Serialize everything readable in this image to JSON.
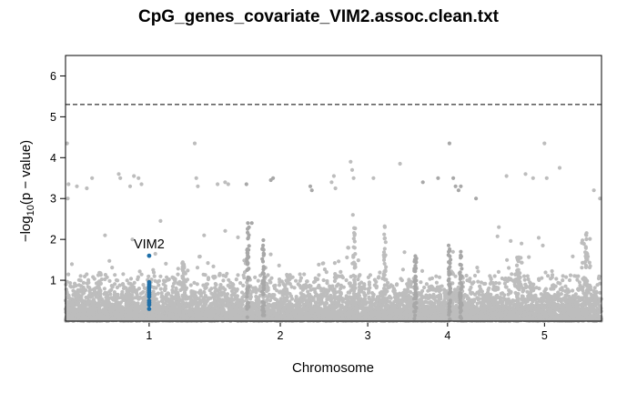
{
  "chart_data": {
    "type": "scatter",
    "title": "CpG_genes_covariate_VIM2.assoc.clean.txt",
    "xlabel": "Chromosome",
    "ylabel_parts": [
      "−log",
      "10",
      "(p − value)"
    ],
    "ylim": [
      0,
      6.5
    ],
    "y_ticks": [
      1,
      2,
      3,
      4,
      5,
      6
    ],
    "chromosomes": [
      {
        "label": "1",
        "length": 220,
        "color": "#bdbdbd"
      },
      {
        "label": "2",
        "length": 125,
        "color": "#a8a8a8"
      },
      {
        "label": "3",
        "length": 105,
        "color": "#bdbdbd"
      },
      {
        "label": "4",
        "length": 105,
        "color": "#a8a8a8"
      },
      {
        "label": "5",
        "length": 150,
        "color": "#bdbdbd"
      }
    ],
    "threshold": 5.3,
    "highlight": {
      "gene": "VIM2",
      "color": "#1f6fa8",
      "chromosome": "1",
      "position": 110,
      "values": [
        1.6,
        0.95,
        0.9,
        0.85,
        0.8,
        0.75,
        0.7,
        0.65,
        0.6,
        0.5,
        0.45,
        0.4,
        0.3
      ]
    },
    "background_points": {
      "count": 7000,
      "description_note": ""
    },
    "notable_points": [
      {
        "chr": "1",
        "pos": 2,
        "y": 4.35
      },
      {
        "chr": "1",
        "pos": 4,
        "y": 3.35
      },
      {
        "chr": "1",
        "pos": 3,
        "y": 3.0
      },
      {
        "chr": "1",
        "pos": 15,
        "y": 3.3
      },
      {
        "chr": "1",
        "pos": 28,
        "y": 3.25
      },
      {
        "chr": "1",
        "pos": 35,
        "y": 3.5
      },
      {
        "chr": "1",
        "pos": 70,
        "y": 3.6
      },
      {
        "chr": "1",
        "pos": 72,
        "y": 3.5
      },
      {
        "chr": "1",
        "pos": 85,
        "y": 3.3
      },
      {
        "chr": "1",
        "pos": 90,
        "y": 3.55
      },
      {
        "chr": "1",
        "pos": 96,
        "y": 3.5
      },
      {
        "chr": "1",
        "pos": 100,
        "y": 3.35
      },
      {
        "chr": "1",
        "pos": 88,
        "y": 2.0
      },
      {
        "chr": "1",
        "pos": 52,
        "y": 2.1
      },
      {
        "chr": "1",
        "pos": 170,
        "y": 4.35
      },
      {
        "chr": "1",
        "pos": 172,
        "y": 3.5
      },
      {
        "chr": "1",
        "pos": 174,
        "y": 3.3
      },
      {
        "chr": "1",
        "pos": 200,
        "y": 3.35
      },
      {
        "chr": "1",
        "pos": 210,
        "y": 3.4
      },
      {
        "chr": "1",
        "pos": 214,
        "y": 3.35
      },
      {
        "chr": "1",
        "pos": 125,
        "y": 2.45
      },
      {
        "chr": "2",
        "pos": 18,
        "y": 3.35
      },
      {
        "chr": "2",
        "pos": 25,
        "y": 2.4
      },
      {
        "chr": "2",
        "pos": 50,
        "y": 3.45
      },
      {
        "chr": "2",
        "pos": 53,
        "y": 3.5
      },
      {
        "chr": "2",
        "pos": 102,
        "y": 3.3
      },
      {
        "chr": "2",
        "pos": 104,
        "y": 3.2
      },
      {
        "chr": "3",
        "pos": 5,
        "y": 3.4
      },
      {
        "chr": "3",
        "pos": 8,
        "y": 3.55
      },
      {
        "chr": "3",
        "pos": 10,
        "y": 3.25
      },
      {
        "chr": "3",
        "pos": 30,
        "y": 3.9
      },
      {
        "chr": "3",
        "pos": 32,
        "y": 3.7
      },
      {
        "chr": "3",
        "pos": 34,
        "y": 3.5
      },
      {
        "chr": "3",
        "pos": 33,
        "y": 2.6
      },
      {
        "chr": "3",
        "pos": 60,
        "y": 3.5
      },
      {
        "chr": "3",
        "pos": 75,
        "y": 2.3
      },
      {
        "chr": "3",
        "pos": 95,
        "y": 3.85
      },
      {
        "chr": "4",
        "pos": 20,
        "y": 3.4
      },
      {
        "chr": "4",
        "pos": 40,
        "y": 3.5
      },
      {
        "chr": "4",
        "pos": 55,
        "y": 4.35
      },
      {
        "chr": "4",
        "pos": 60,
        "y": 3.5
      },
      {
        "chr": "4",
        "pos": 63,
        "y": 3.3
      },
      {
        "chr": "4",
        "pos": 67,
        "y": 3.2
      },
      {
        "chr": "4",
        "pos": 70,
        "y": 3.3
      },
      {
        "chr": "4",
        "pos": 90,
        "y": 3.0
      },
      {
        "chr": "5",
        "pos": 15,
        "y": 2.3
      },
      {
        "chr": "5",
        "pos": 25,
        "y": 3.55
      },
      {
        "chr": "5",
        "pos": 50,
        "y": 3.6
      },
      {
        "chr": "5",
        "pos": 60,
        "y": 3.5
      },
      {
        "chr": "5",
        "pos": 75,
        "y": 4.35
      },
      {
        "chr": "5",
        "pos": 78,
        "y": 3.5
      },
      {
        "chr": "5",
        "pos": 95,
        "y": 3.75
      },
      {
        "chr": "5",
        "pos": 140,
        "y": 3.2
      },
      {
        "chr": "5",
        "pos": 148,
        "y": 3.0
      },
      {
        "chr": "5",
        "pos": 130,
        "y": 2.1
      }
    ],
    "peaks": [
      {
        "chr": "1",
        "pos": 45,
        "height": 1.25
      },
      {
        "chr": "1",
        "pos": 155,
        "height": 1.45
      },
      {
        "chr": "2",
        "pos": 20,
        "height": 2.4
      },
      {
        "chr": "2",
        "pos": 40,
        "height": 2.0
      },
      {
        "chr": "3",
        "pos": 35,
        "height": 2.3
      },
      {
        "chr": "3",
        "pos": 75,
        "height": 2.35
      },
      {
        "chr": "4",
        "pos": 10,
        "height": 1.6
      },
      {
        "chr": "4",
        "pos": 55,
        "height": 1.9
      },
      {
        "chr": "4",
        "pos": 70,
        "height": 1.7
      },
      {
        "chr": "5",
        "pos": 40,
        "height": 1.6
      },
      {
        "chr": "5",
        "pos": 130,
        "height": 2.2
      }
    ]
  }
}
